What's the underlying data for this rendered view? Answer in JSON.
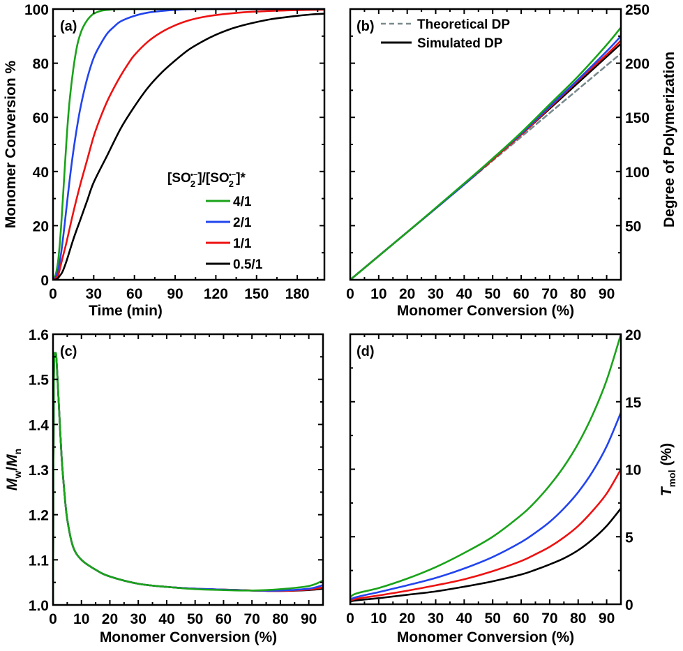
{
  "colors": {
    "4/1": "#1aa31a",
    "2/1": "#2244ee",
    "1/1": "#ee1111",
    "0.5/1": "#000000",
    "theoretical": "#7a8a8e"
  },
  "chart_data": [
    {
      "id": "a",
      "type": "line",
      "panel_label": "(a)",
      "title": "",
      "xlabel": "Time (min)",
      "ylabel": "Monomer Conversion %",
      "xlim": [
        0,
        200
      ],
      "ylim": [
        0,
        100
      ],
      "xticks": [
        0,
        30,
        60,
        90,
        120,
        150,
        180
      ],
      "yticks": [
        0,
        20,
        40,
        60,
        80,
        100
      ],
      "yaxis_side": "left",
      "legend": {
        "title": "[SO2•−]/[SO2•−]*",
        "title_main": "[SO",
        "title_sub": "2",
        "title_sup": "•−",
        "title_mid": "]/[SO",
        "title_end": "]*",
        "placement": "center-right",
        "entries": [
          "4/1",
          "2/1",
          "1/1",
          "0.5/1"
        ]
      },
      "series": [
        {
          "name": "4/1",
          "color_key": "4/1",
          "x": [
            0,
            2,
            4,
            6,
            8,
            10,
            12,
            15,
            18,
            21,
            24,
            27,
            30,
            35,
            40,
            45,
            50,
            60,
            80,
            200
          ],
          "y": [
            0,
            2,
            8,
            20,
            36,
            52,
            65,
            78,
            87,
            92,
            95,
            97,
            98.3,
            99.3,
            99.7,
            99.9,
            100,
            100,
            100,
            100
          ]
        },
        {
          "name": "2/1",
          "color_key": "2/1",
          "x": [
            0,
            2,
            4,
            6,
            8,
            10,
            13,
            16,
            20,
            25,
            30,
            35,
            40,
            45,
            50,
            60,
            70,
            80,
            90,
            110,
            200
          ],
          "y": [
            0,
            1,
            4,
            10,
            18,
            27,
            40,
            51,
            63,
            74,
            82,
            87,
            91,
            93.5,
            95.5,
            97.5,
            98.7,
            99.3,
            99.7,
            100,
            100
          ]
        },
        {
          "name": "1/1",
          "color_key": "1/1",
          "x": [
            0,
            2,
            4,
            6,
            8,
            10,
            15,
            20,
            25,
            30,
            35,
            40,
            45,
            50,
            55,
            60,
            70,
            80,
            90,
            100,
            110,
            120,
            140,
            160,
            180,
            200
          ],
          "y": [
            0,
            0.5,
            2,
            6,
            10,
            14,
            25,
            35,
            44,
            53,
            60,
            66,
            71,
            75.5,
            79.5,
            83,
            88,
            91.5,
            94,
            95.8,
            97,
            97.8,
            98.8,
            99.3,
            99.6,
            99.8
          ]
        },
        {
          "name": "0.5/1",
          "color_key": "0.5/1",
          "x": [
            0,
            3,
            5,
            7,
            10,
            15,
            20,
            25,
            30,
            40,
            50,
            60,
            70,
            80,
            90,
            100,
            110,
            120,
            130,
            140,
            150,
            160,
            170,
            180,
            190,
            200
          ],
          "y": [
            0,
            0.3,
            1.5,
            3,
            7,
            15,
            22,
            29,
            36,
            46,
            56,
            64,
            71,
            76.5,
            81,
            85,
            88,
            90.5,
            92.5,
            94,
            95.2,
            96.2,
            96.9,
            97.5,
            98,
            98.3
          ]
        }
      ]
    },
    {
      "id": "b",
      "type": "line",
      "panel_label": "(b)",
      "title": "",
      "xlabel": "Monomer Conversion (%)",
      "ylabel": "Degree of Polymerization",
      "xlim": [
        0,
        95
      ],
      "ylim": [
        0,
        250
      ],
      "xticks": [
        0,
        10,
        20,
        30,
        40,
        50,
        60,
        70,
        80,
        90
      ],
      "yticks": [
        50,
        100,
        150,
        200,
        250
      ],
      "yaxis_side": "right",
      "legend": {
        "placement": "top-left",
        "entries": [
          {
            "label": "Theoretical DP",
            "style": "dashed",
            "color_key": "theoretical"
          },
          {
            "label": "Simulated DP",
            "style": "solid",
            "color_key": "0.5/1"
          }
        ]
      },
      "series": [
        {
          "name": "Theoretical DP",
          "color_key": "theoretical",
          "dashed": true,
          "x": [
            0,
            95
          ],
          "y": [
            0,
            209
          ]
        },
        {
          "name": "0.5/1",
          "color_key": "0.5/1",
          "x": [
            0,
            20,
            40,
            50,
            60,
            70,
            80,
            90,
            95
          ],
          "y": [
            0,
            44,
            88,
            111,
            134,
            158,
            182,
            206,
            218
          ]
        },
        {
          "name": "1/1",
          "color_key": "1/1",
          "x": [
            0,
            20,
            40,
            50,
            60,
            70,
            80,
            90,
            95
          ],
          "y": [
            0,
            44,
            88,
            111,
            134,
            159,
            184,
            208,
            221
          ]
        },
        {
          "name": "2/1",
          "color_key": "2/1",
          "x": [
            0,
            20,
            40,
            50,
            60,
            70,
            80,
            90,
            95
          ],
          "y": [
            0,
            44,
            88,
            112,
            135,
            160,
            185,
            211,
            225
          ]
        },
        {
          "name": "4/1",
          "color_key": "4/1",
          "x": [
            0,
            20,
            40,
            50,
            60,
            70,
            80,
            90,
            95
          ],
          "y": [
            0,
            44,
            89,
            112,
            136,
            162,
            188,
            217,
            233
          ]
        }
      ]
    },
    {
      "id": "c",
      "type": "line",
      "panel_label": "(c)",
      "title": "",
      "xlabel": "Monomer Conversion (%)",
      "ylabel": "Mw/Mn",
      "ylabel_parts": {
        "m1": "M",
        "s1": "w",
        "slash": "/",
        "m2": "M",
        "s2": "n"
      },
      "xlim": [
        0,
        95
      ],
      "ylim": [
        1.0,
        1.6
      ],
      "xticks": [
        0,
        10,
        20,
        30,
        40,
        50,
        60,
        70,
        80,
        90
      ],
      "yticks": [
        1.0,
        1.1,
        1.2,
        1.3,
        1.4,
        1.5,
        1.6
      ],
      "ytick_labels": [
        "1.0",
        "1.1",
        "1.2",
        "1.3",
        "1.4",
        "1.5",
        "1.6"
      ],
      "yaxis_side": "left",
      "series": [
        {
          "name": "0.5/1",
          "color_key": "0.5/1",
          "x": [
            0,
            0.3,
            0.8,
            1.2,
            2,
            3,
            4,
            5,
            7,
            10,
            15,
            20,
            30,
            40,
            50,
            60,
            70,
            80,
            90,
            95
          ],
          "y": [
            1.0,
            1.5,
            1.553,
            1.545,
            1.45,
            1.33,
            1.25,
            1.19,
            1.13,
            1.1,
            1.078,
            1.063,
            1.047,
            1.04,
            1.036,
            1.034,
            1.032,
            1.031,
            1.033,
            1.036
          ]
        },
        {
          "name": "1/1",
          "color_key": "1/1",
          "x": [
            0,
            0.3,
            0.8,
            1.2,
            2,
            3,
            4,
            5,
            7,
            10,
            15,
            20,
            30,
            40,
            50,
            60,
            70,
            80,
            90,
            95
          ],
          "y": [
            1.0,
            1.5,
            1.553,
            1.545,
            1.45,
            1.33,
            1.25,
            1.19,
            1.13,
            1.1,
            1.078,
            1.063,
            1.047,
            1.04,
            1.036,
            1.034,
            1.032,
            1.031,
            1.034,
            1.039
          ]
        },
        {
          "name": "2/1",
          "color_key": "2/1",
          "x": [
            0,
            0.3,
            0.8,
            1.2,
            2,
            3,
            4,
            5,
            7,
            10,
            15,
            20,
            30,
            40,
            50,
            60,
            70,
            80,
            90,
            95
          ],
          "y": [
            1.0,
            1.5,
            1.553,
            1.545,
            1.45,
            1.33,
            1.25,
            1.19,
            1.13,
            1.1,
            1.078,
            1.063,
            1.047,
            1.04,
            1.036,
            1.034,
            1.032,
            1.032,
            1.036,
            1.044
          ]
        },
        {
          "name": "4/1",
          "color_key": "4/1",
          "x": [
            0,
            0.3,
            0.8,
            1.2,
            2,
            3,
            4,
            5,
            7,
            10,
            15,
            20,
            30,
            40,
            50,
            60,
            70,
            80,
            90,
            95
          ],
          "y": [
            1.0,
            1.5,
            1.553,
            1.545,
            1.45,
            1.33,
            1.25,
            1.19,
            1.13,
            1.1,
            1.078,
            1.063,
            1.047,
            1.04,
            1.035,
            1.033,
            1.032,
            1.035,
            1.042,
            1.054
          ]
        }
      ]
    },
    {
      "id": "d",
      "type": "line",
      "panel_label": "(d)",
      "title": "",
      "xlabel": "Monomer Conversion (%)",
      "ylabel": "Tmol (%)",
      "ylabel_parts": {
        "t": "T",
        "sub": "mol",
        "rest": " (%)"
      },
      "xlim": [
        0,
        95
      ],
      "ylim": [
        0,
        20
      ],
      "xticks": [
        0,
        10,
        20,
        30,
        40,
        50,
        60,
        70,
        80,
        90
      ],
      "yticks": [
        0,
        5,
        10,
        15,
        20
      ],
      "yaxis_side": "right",
      "series": [
        {
          "name": "0.5/1",
          "color_key": "0.5/1",
          "x": [
            0,
            1,
            10,
            20,
            30,
            40,
            50,
            60,
            65,
            70,
            75,
            80,
            85,
            90,
            95
          ],
          "y": [
            0,
            0.25,
            0.45,
            0.7,
            0.95,
            1.3,
            1.7,
            2.2,
            2.55,
            2.95,
            3.4,
            4.0,
            4.8,
            5.8,
            7.1
          ]
        },
        {
          "name": "1/1",
          "color_key": "1/1",
          "x": [
            0,
            1,
            10,
            20,
            30,
            40,
            50,
            60,
            65,
            70,
            75,
            80,
            85,
            90,
            95
          ],
          "y": [
            0,
            0.35,
            0.65,
            1.0,
            1.4,
            1.85,
            2.45,
            3.2,
            3.7,
            4.25,
            4.95,
            5.8,
            6.9,
            8.2,
            10.0
          ]
        },
        {
          "name": "2/1",
          "color_key": "2/1",
          "x": [
            0,
            1,
            10,
            20,
            30,
            40,
            50,
            60,
            65,
            70,
            75,
            80,
            85,
            90,
            95
          ],
          "y": [
            0,
            0.45,
            0.9,
            1.4,
            1.95,
            2.65,
            3.5,
            4.6,
            5.3,
            6.1,
            7.1,
            8.3,
            9.8,
            11.7,
            14.2
          ]
        },
        {
          "name": "4/1",
          "color_key": "4/1",
          "x": [
            0,
            1,
            10,
            20,
            30,
            40,
            50,
            60,
            65,
            70,
            75,
            80,
            85,
            90,
            95
          ],
          "y": [
            0,
            0.7,
            1.2,
            1.9,
            2.75,
            3.8,
            5.0,
            6.6,
            7.6,
            8.8,
            10.2,
            11.9,
            14.0,
            16.6,
            20.0
          ]
        }
      ]
    }
  ]
}
